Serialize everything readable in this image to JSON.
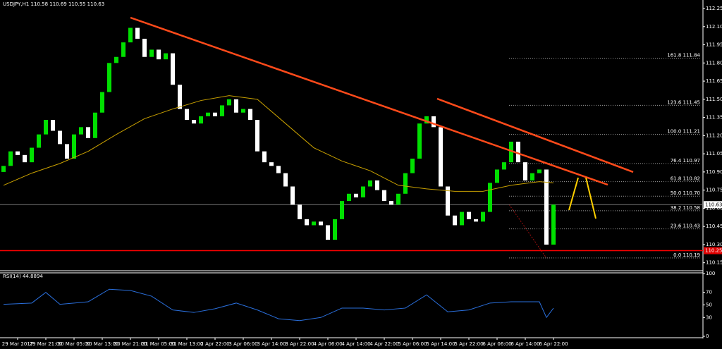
{
  "chart_data": [
    {
      "type": "candlestick",
      "title": "USDJPY,H1 110.58 110.69 110.55 110.63",
      "up_color": "#00e000",
      "down_color": "#ffffff",
      "x_labels": [
        "29 Mar 2017",
        "29 Mar 21:00",
        "30 Mar 05:00",
        "30 Mar 13:00",
        "30 Mar 21:00",
        "31 Mar 05:00",
        "31 Mar 13:00",
        "2 Apr 22:00",
        "3 Apr 06:00",
        "3 Apr 14:00",
        "3 Apr 22:00",
        "4 Apr 06:00",
        "4 Apr 14:00",
        "4 Apr 22:00",
        "5 Apr 06:00",
        "5 Apr 14:00",
        "5 Apr 22:00",
        "6 Apr 06:00",
        "6 Apr 14:00",
        "6 Apr 22:00"
      ],
      "open": [
        110.9,
        110.95,
        111.07,
        111.04,
        110.98,
        111.1,
        111.21,
        111.33,
        111.24,
        111.13,
        111.01,
        111.21,
        111.27,
        111.18,
        111.39,
        111.56,
        111.8,
        111.85,
        111.97,
        112.09,
        112.0,
        111.85,
        111.91,
        111.83,
        111.88,
        111.62,
        111.42,
        111.33,
        111.3,
        111.36,
        111.39,
        111.36,
        111.45,
        111.5,
        111.39,
        111.42,
        111.33,
        111.07,
        110.98,
        110.95,
        110.89,
        110.78,
        110.63,
        110.51,
        110.46,
        110.49,
        110.46,
        110.34,
        110.51,
        110.66,
        110.72,
        110.69,
        110.78,
        110.83,
        110.75,
        110.66,
        110.63,
        110.72,
        110.89,
        111.01,
        111.3,
        111.36,
        111.27,
        110.78,
        110.54,
        110.46,
        110.57,
        110.51,
        110.49,
        110.57,
        110.81,
        110.92,
        110.98,
        111.15,
        110.98,
        110.83,
        110.89,
        110.92,
        110.3
      ],
      "close": [
        110.95,
        111.07,
        111.04,
        110.98,
        111.1,
        111.21,
        111.33,
        111.24,
        111.13,
        111.01,
        111.21,
        111.27,
        111.18,
        111.39,
        111.56,
        111.8,
        111.85,
        111.97,
        112.09,
        112.0,
        111.85,
        111.91,
        111.83,
        111.88,
        111.62,
        111.42,
        111.33,
        111.3,
        111.36,
        111.39,
        111.36,
        111.45,
        111.5,
        111.39,
        111.42,
        111.33,
        111.07,
        110.98,
        110.95,
        110.89,
        110.78,
        110.63,
        110.51,
        110.46,
        110.49,
        110.46,
        110.34,
        110.51,
        110.66,
        110.72,
        110.69,
        110.78,
        110.83,
        110.75,
        110.66,
        110.63,
        110.72,
        110.89,
        111.01,
        111.3,
        111.36,
        111.27,
        110.78,
        110.54,
        110.46,
        110.57,
        110.51,
        110.49,
        110.57,
        110.81,
        110.92,
        110.98,
        111.15,
        110.98,
        110.83,
        110.89,
        110.92,
        110.3,
        110.63
      ],
      "moving_average": {
        "color": "#c8a000",
        "x": [
          0,
          4,
          8,
          12,
          16,
          20,
          24,
          28,
          32,
          36,
          40,
          44,
          48,
          52,
          56,
          60,
          64,
          68,
          72,
          76,
          78
        ],
        "values": [
          110.79,
          110.89,
          110.97,
          111.07,
          111.21,
          111.34,
          111.42,
          111.49,
          111.53,
          111.5,
          111.3,
          111.1,
          110.99,
          110.91,
          110.79,
          110.76,
          110.74,
          110.74,
          110.79,
          110.82,
          110.81
        ]
      },
      "ylim": [
        110.09,
        112.32
      ],
      "yticks": [
        112.25,
        {
          "value": 112.1,
          "label": "112.10"
        },
        111.95,
        {
          "value": 111.8,
          "label": "111.80"
        },
        111.65,
        {
          "value": 111.5,
          "label": "111.50"
        },
        111.35,
        {
          "value": 111.2,
          "label": "111.20"
        },
        111.05,
        {
          "value": 110.9,
          "label": "110.90"
        },
        110.75,
        {
          "value": 110.6,
          "label": "110.60"
        },
        110.45,
        {
          "value": 110.3,
          "label": "110.30"
        },
        110.15
      ],
      "fibonacci": [
        {
          "value": 111.84,
          "label": "161.8 111.84"
        },
        {
          "value": 111.45,
          "label": "123.6 111.45"
        },
        {
          "value": 111.21,
          "label": "100.0 111.21"
        },
        {
          "value": 110.97,
          "label": "76.4 110.97"
        },
        {
          "value": 110.82,
          "label": "61.8 110.82"
        },
        {
          "value": 110.7,
          "label": "50.0 110.70"
        },
        {
          "value": 110.58,
          "label": "38.2 110.58"
        },
        {
          "value": 110.43,
          "label": "23.6 110.43"
        },
        {
          "value": 110.19,
          "label": "0.0 110.19"
        }
      ],
      "current_price": 110.63,
      "support_line": 110.25
    },
    {
      "type": "line",
      "title": "RSI(14) 44.8894",
      "color": "#2a6fdc",
      "x": [
        0,
        4,
        6,
        8,
        10,
        12,
        15,
        18,
        21,
        24,
        27,
        30,
        33,
        36,
        39,
        42,
        45,
        48,
        51,
        54,
        57,
        60,
        63,
        66,
        69,
        72,
        76,
        77,
        78
      ],
      "values": [
        51,
        53,
        70,
        51,
        53,
        55,
        75,
        73,
        64,
        42,
        38,
        44,
        53,
        42,
        28,
        25,
        30,
        45,
        45,
        42,
        45,
        66,
        39,
        42,
        53,
        55,
        55,
        30,
        44.89
      ],
      "ylim": [
        0,
        100
      ],
      "yticks": [
        100,
        70,
        50,
        30,
        0
      ]
    }
  ]
}
